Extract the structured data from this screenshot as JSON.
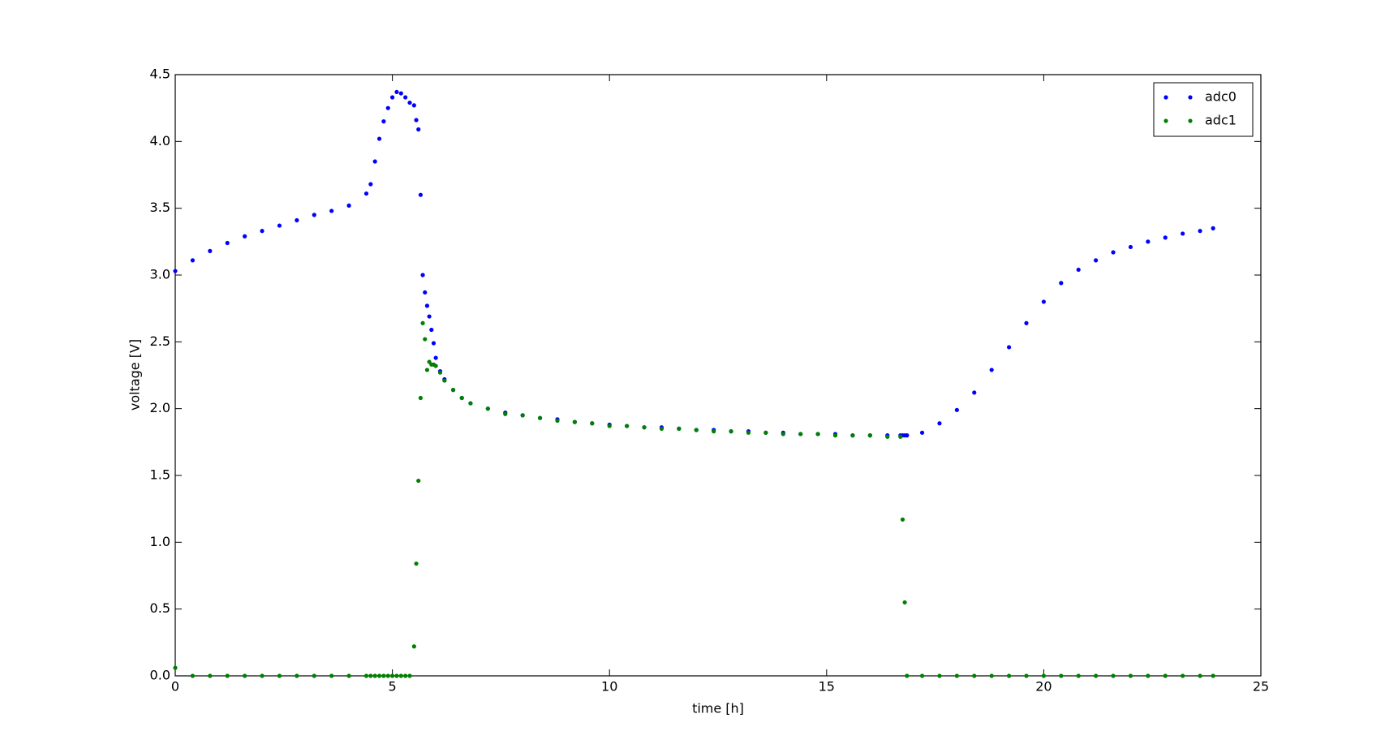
{
  "chart_data": {
    "type": "scatter",
    "xlabel": "time [h]",
    "ylabel": "voltage [V]",
    "x": [
      0,
      0.4,
      0.8,
      1.2,
      1.6,
      2.0,
      2.4,
      2.8,
      3.2,
      3.6,
      4.0,
      4.4,
      4.5,
      4.6,
      4.7,
      4.8,
      4.9,
      5.0,
      5.1,
      5.2,
      5.3,
      5.4,
      5.5,
      5.55,
      5.6,
      5.65,
      5.7,
      5.75,
      5.8,
      5.85,
      5.9,
      5.95,
      6.0,
      6.1,
      6.2,
      6.4,
      6.6,
      6.8,
      7.2,
      7.6,
      8.0,
      8.4,
      8.8,
      9.2,
      9.6,
      10,
      10.4,
      10.8,
      11.2,
      11.6,
      12,
      12.4,
      12.8,
      13.2,
      13.6,
      14,
      14.4,
      14.8,
      15.2,
      15.6,
      16,
      16.4,
      16.7,
      16.75,
      16.8,
      16.85,
      17.2,
      17.6,
      18.0,
      18.4,
      18.8,
      19.2,
      19.6,
      20.0,
      20.4,
      20.8,
      21.2,
      21.6,
      22.0,
      22.4,
      22.8,
      23.2,
      23.6,
      23.9
    ],
    "series": [
      {
        "name": "adc0",
        "color": "#0000ff",
        "values": [
          3.03,
          3.11,
          3.18,
          3.24,
          3.29,
          3.33,
          3.37,
          3.41,
          3.45,
          3.48,
          3.52,
          3.61,
          3.68,
          3.85,
          4.02,
          4.15,
          4.25,
          4.33,
          4.37,
          4.36,
          4.33,
          4.29,
          4.27,
          4.16,
          4.09,
          3.6,
          3.0,
          2.87,
          2.77,
          2.69,
          2.59,
          2.49,
          2.38,
          2.28,
          2.22,
          2.14,
          2.08,
          2.04,
          2.0,
          1.97,
          1.95,
          1.93,
          1.92,
          1.9,
          1.89,
          1.88,
          1.87,
          1.86,
          1.86,
          1.85,
          1.84,
          1.84,
          1.83,
          1.83,
          1.82,
          1.82,
          1.81,
          1.81,
          1.81,
          1.8,
          1.8,
          1.8,
          1.8,
          1.8,
          1.8,
          1.8,
          1.82,
          1.89,
          1.99,
          2.12,
          2.29,
          2.46,
          2.64,
          2.8,
          2.94,
          3.04,
          3.11,
          3.17,
          3.21,
          3.25,
          3.28,
          3.31,
          3.33,
          3.35
        ]
      },
      {
        "name": "adc1",
        "color": "#008000",
        "values": [
          0.06,
          0,
          0,
          0,
          0,
          0,
          0,
          0,
          0,
          0,
          0,
          0,
          0,
          0,
          0,
          0,
          0,
          0,
          0,
          0,
          0,
          0,
          0.22,
          0.84,
          1.46,
          2.08,
          2.64,
          2.52,
          2.29,
          2.35,
          2.33,
          2.33,
          2.32,
          2.27,
          2.21,
          2.14,
          2.08,
          2.04,
          2.0,
          1.96,
          1.95,
          1.93,
          1.91,
          1.9,
          1.89,
          1.87,
          1.87,
          1.86,
          1.85,
          1.85,
          1.84,
          1.83,
          1.83,
          1.82,
          1.82,
          1.81,
          1.81,
          1.81,
          1.8,
          1.8,
          1.8,
          1.79,
          1.79,
          1.17,
          0.55,
          0,
          0,
          0,
          0,
          0,
          0,
          0,
          0,
          0,
          0,
          0,
          0,
          0,
          0,
          0,
          0,
          0,
          0,
          0
        ]
      }
    ],
    "xlim": [
      0,
      25
    ],
    "xticks": [
      0,
      5,
      10,
      15,
      20,
      25
    ],
    "ylim": [
      0,
      4.5
    ],
    "yticks": [
      {
        "value": 0,
        "label": "0.0"
      },
      {
        "value": 0.5,
        "label": "0.5"
      },
      {
        "value": 1,
        "label": "1.0"
      },
      {
        "value": 1.5,
        "label": "1.5"
      },
      {
        "value": 2,
        "label": "2.0"
      },
      {
        "value": 2.5,
        "label": "2.5"
      },
      {
        "value": 3,
        "label": "3.0"
      },
      {
        "value": 3.5,
        "label": "3.5"
      },
      {
        "value": 4,
        "label": "4.0"
      },
      {
        "value": 4.5,
        "label": "4.5"
      }
    ],
    "legend": "upper right"
  }
}
